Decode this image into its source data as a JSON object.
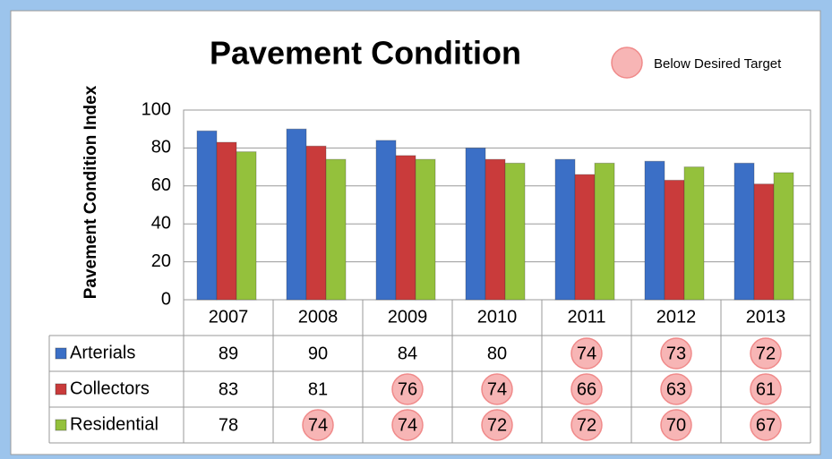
{
  "chart_data": {
    "type": "bar",
    "title": "Pavement Condition",
    "y_label": "Pavement Condition Index",
    "categories": [
      "2007",
      "2008",
      "2009",
      "2010",
      "2011",
      "2012",
      "2013"
    ],
    "series": [
      {
        "name": "Arterials",
        "color": "#3b6fc6",
        "values": [
          89,
          90,
          84,
          80,
          74,
          73,
          72
        ],
        "below_target": [
          false,
          false,
          false,
          false,
          true,
          true,
          true
        ]
      },
      {
        "name": "Collectors",
        "color": "#c93b3b",
        "values": [
          83,
          81,
          76,
          74,
          66,
          63,
          61
        ],
        "below_target": [
          false,
          false,
          true,
          true,
          true,
          true,
          true
        ]
      },
      {
        "name": "Residential",
        "color": "#94c13c",
        "values": [
          78,
          74,
          74,
          72,
          72,
          70,
          67
        ],
        "below_target": [
          false,
          true,
          true,
          true,
          true,
          true,
          true
        ]
      }
    ],
    "highlight": {
      "label": "Below Desired Target",
      "color": "#f7b5b5",
      "stroke": "#f08a8a"
    },
    "ylim": [
      0,
      100
    ],
    "yticks": [
      0,
      20,
      40,
      60,
      80,
      100
    ],
    "grid": true,
    "data_table": true
  }
}
